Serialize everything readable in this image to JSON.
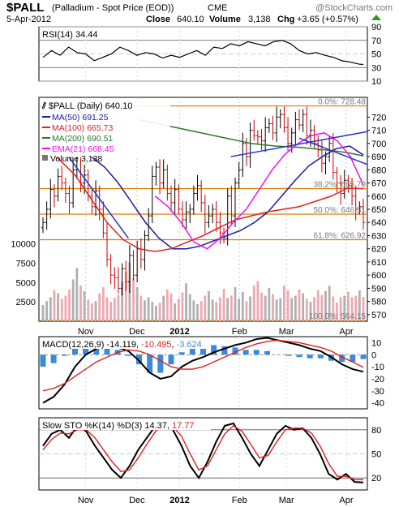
{
  "header": {
    "symbol": "$PALL",
    "name": "(Palladium - Spot Price (EOD))",
    "exchange": "CME",
    "watermark": "@StockCharts.com",
    "date": "5-Apr-2012",
    "close_label": "Close",
    "close": "640.10",
    "volume_label": "Volume",
    "volume": "3,138",
    "chg_label": "Chg",
    "chg": "+3.65 (+0.57%)"
  },
  "colors": {
    "price_bar": "#000000",
    "ma50": "#1a1a9a",
    "ma100": "#dd2222",
    "ma200": "#2a7a2a",
    "ema21": "#ee11ee",
    "fib": "#e07b00",
    "volume_up": "#b0b0b0",
    "volume_down": "#f0a8b0",
    "macd_line": "#000000",
    "signal_line": "#dd2222",
    "histogram": "#3a8ad8",
    "sto_k": "#000000",
    "sto_d": "#dd2222",
    "trend": "#2233cc"
  },
  "chart_data": [
    {
      "type": "line",
      "panel": "rsi",
      "label": "RSI(14)",
      "value": "34.44",
      "ylim": [
        10,
        90
      ],
      "yticks": [
        90,
        70,
        50,
        30,
        10
      ],
      "x": [
        0,
        4,
        8,
        12,
        16,
        20,
        24,
        28,
        32,
        36,
        40,
        44,
        48,
        52,
        56,
        60,
        64,
        68,
        72,
        76,
        80,
        84,
        88,
        92,
        96,
        100,
        104,
        108,
        112,
        116,
        120,
        124,
        128,
        132,
        136,
        140,
        144,
        148,
        150
      ],
      "values": [
        45,
        55,
        48,
        60,
        52,
        50,
        40,
        45,
        50,
        60,
        55,
        48,
        52,
        50,
        44,
        48,
        45,
        50,
        55,
        48,
        60,
        58,
        65,
        62,
        68,
        65,
        62,
        68,
        70,
        65,
        55,
        50,
        52,
        48,
        45,
        40,
        38,
        35,
        34.44
      ]
    },
    {
      "type": "candlestick",
      "panel": "price",
      "label": "$PALL (Daily)",
      "last": "640.10",
      "ylim": [
        565,
        735
      ],
      "yticks": [
        720,
        710,
        700,
        690,
        680,
        670,
        660,
        650,
        640,
        630,
        620,
        610,
        600,
        590,
        580,
        570
      ],
      "xticks": [
        {
          "label": "Nov",
          "x": 20
        },
        {
          "label": "Dec",
          "x": 44
        },
        {
          "label": "2012",
          "x": 64
        },
        {
          "label": "Feb",
          "x": 92
        },
        {
          "label": "Mar",
          "x": 114
        },
        {
          "label": "Apr",
          "x": 142
        }
      ],
      "fib_levels": [
        {
          "label": "0.0%: 728.48",
          "value": 728.48
        },
        {
          "label": "38.2%: 665.70",
          "value": 665.7
        },
        {
          "label": "50.0%: 646.31",
          "value": 646.31
        },
        {
          "label": "61.8%: 626.92",
          "value": 626.92
        },
        {
          "label": "100.0%: 564.15",
          "value": 564.15
        }
      ],
      "close": [
        640,
        650,
        665,
        660,
        675,
        670,
        662,
        655,
        680,
        690,
        670,
        676,
        660,
        652,
        664,
        650,
        632,
        612,
        600,
        598,
        590,
        605,
        595,
        615,
        600,
        620,
        612,
        630,
        645,
        675,
        682,
        670,
        680,
        662,
        655,
        665,
        650,
        642,
        648,
        650,
        662,
        668,
        655,
        640,
        645,
        650,
        640,
        632,
        628,
        660,
        645,
        670,
        680,
        700,
        690,
        710,
        706,
        705,
        702,
        712,
        715,
        708,
        720,
        722,
        712,
        700,
        708,
        718,
        714,
        722,
        706,
        710,
        700,
        695,
        685,
        690,
        700,
        678,
        670,
        662,
        672,
        668,
        660,
        650,
        652,
        640
      ],
      "series": [
        {
          "name": "MA(50)",
          "value": "691.25",
          "values": [
            690,
            682,
            670,
            655,
            640,
            628,
            620,
            620,
            622,
            626,
            630,
            634,
            640,
            648,
            660,
            672,
            683,
            690,
            696,
            698,
            691.25
          ]
        },
        {
          "name": "MA(100)",
          "value": "665.73",
          "values": [
            700,
            688,
            676,
            658,
            640,
            627,
            620,
            618,
            620,
            625,
            630,
            636,
            642,
            645,
            648,
            650,
            652,
            656,
            660,
            666,
            665.73
          ]
        },
        {
          "name": "MA(200)",
          "value": "690.51",
          "values": [
            718,
            716,
            714,
            712,
            710,
            708,
            706,
            704,
            702,
            700,
            699,
            698,
            697.5,
            697,
            696,
            695,
            694,
            692.5,
            690.51
          ]
        },
        {
          "name": "EMA(21)",
          "value": "668.45",
          "values": [
            660,
            652,
            640,
            625,
            620,
            628,
            640,
            650,
            665,
            680,
            692,
            700,
            706,
            708,
            702,
            690,
            668.45
          ]
        }
      ]
    },
    {
      "type": "bar",
      "panel": "volume",
      "label": "Volume",
      "value": "3,138",
      "yticks": [
        10000,
        7500,
        5000,
        2500
      ],
      "ylim": [
        0,
        11000
      ],
      "values": [
        2100,
        2600,
        3100,
        4000,
        3600,
        2900,
        3300,
        4100,
        5400,
        6900,
        4600,
        3900,
        2800,
        2300,
        2600,
        3600,
        4400,
        3100,
        2500,
        3000,
        3400,
        5100,
        6400,
        7600,
        5600,
        4400,
        3300,
        2700,
        3100,
        2500,
        2000,
        2400,
        3300,
        4100,
        3600,
        2300,
        2900,
        3700,
        4900,
        3500,
        2700,
        2200,
        2600,
        3300,
        3900,
        2800,
        2500,
        3100,
        4200,
        3000,
        3300,
        4400,
        2900,
        3800,
        2600,
        3200,
        4600,
        5200,
        3700,
        3300,
        4300,
        3500,
        2800,
        3000,
        4600,
        4000,
        3000,
        3300,
        4100,
        3600,
        2900,
        2500,
        3100,
        4000,
        3400,
        3900,
        4600,
        3200,
        2400,
        3100,
        3300,
        3800,
        3100,
        3300,
        4000,
        3138
      ]
    },
    {
      "type": "line",
      "panel": "macd",
      "label": "MACD(12,26,9)",
      "values_text": [
        "-14.119",
        "-10.495",
        "-3.624"
      ],
      "ylim": [
        -45,
        15
      ],
      "yticks": [
        10,
        0,
        -10,
        -20,
        -30,
        -40
      ],
      "series": [
        {
          "name": "MACD",
          "values": [
            -40,
            -35,
            -25,
            -10,
            0,
            5,
            8,
            6,
            3,
            -5,
            -15,
            -20,
            -18,
            -10,
            -5,
            -2,
            2,
            5,
            8,
            10,
            13,
            14,
            12,
            10,
            8,
            5,
            3,
            -2,
            -8,
            -12,
            -14.119
          ]
        },
        {
          "name": "Signal",
          "values": [
            -30,
            -28,
            -24,
            -18,
            -12,
            -6,
            -2,
            2,
            4,
            3,
            0,
            -5,
            -10,
            -12,
            -12,
            -10,
            -6,
            -2,
            2,
            6,
            9,
            11,
            12,
            11,
            10,
            8,
            6,
            3,
            -2,
            -6,
            -10.495
          ]
        },
        {
          "name": "Histogram",
          "values": [
            -10,
            -7,
            -1,
            8,
            12,
            11,
            10,
            4,
            -1,
            -8,
            -15,
            -15,
            -8,
            2,
            7,
            8,
            8,
            7,
            6,
            4,
            4,
            3,
            0,
            -1,
            -2,
            -3,
            -3,
            -5,
            -6,
            -6,
            -3.624
          ]
        }
      ]
    },
    {
      "type": "line",
      "panel": "sto",
      "label": "Slow STO %K(14) %D(3)",
      "values_text": [
        "14.37",
        "17.77"
      ],
      "ylim": [
        5,
        95
      ],
      "yticks": [
        80,
        50,
        20
      ],
      "series": [
        {
          "name": "%K",
          "values": [
            60,
            75,
            80,
            70,
            85,
            78,
            60,
            45,
            30,
            20,
            35,
            55,
            70,
            85,
            88,
            80,
            60,
            35,
            20,
            40,
            65,
            85,
            88,
            70,
            50,
            35,
            55,
            75,
            85,
            80,
            82,
            70,
            50,
            25,
            18,
            25,
            15,
            14.37
          ]
        },
        {
          "name": "%D",
          "values": [
            55,
            68,
            76,
            75,
            80,
            80,
            70,
            55,
            40,
            28,
            30,
            45,
            62,
            78,
            85,
            84,
            72,
            50,
            30,
            35,
            55,
            75,
            85,
            78,
            62,
            45,
            48,
            65,
            80,
            82,
            82,
            76,
            60,
            38,
            22,
            22,
            18,
            17.77
          ]
        }
      ]
    }
  ]
}
